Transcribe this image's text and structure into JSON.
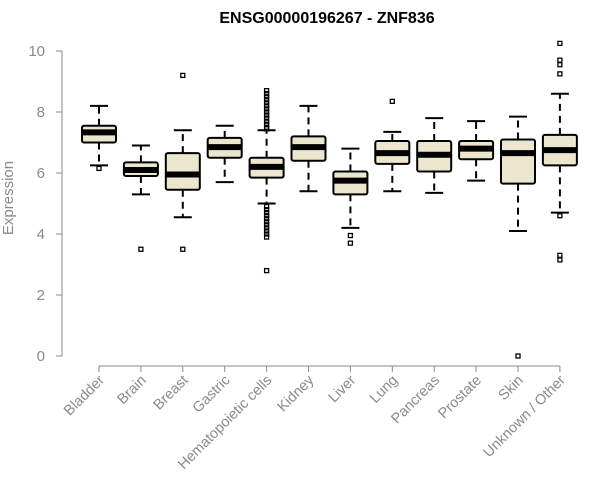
{
  "chart_data": {
    "type": "boxplot",
    "title": "ENSG00000196267 - ZNF836",
    "xlabel": "",
    "ylabel": "Expression",
    "ylim": [
      0,
      10
    ],
    "yticks": [
      0,
      2,
      4,
      6,
      8,
      10
    ],
    "colors": {
      "box_fill": "#ede6cf",
      "stroke": "#000000",
      "axis": "#8a8a8a"
    },
    "categories": [
      "Bladder",
      "Brain",
      "Breast",
      "Gastric",
      "Hematopoietic cells",
      "Kidney",
      "Liver",
      "Lung",
      "Pancreas",
      "Prostate",
      "Skin",
      "Unknown / Other"
    ],
    "boxes": [
      {
        "name": "Bladder",
        "whisker_low": 6.25,
        "q1": 7.0,
        "median": 7.33,
        "q3": 7.55,
        "whisker_high": 8.2,
        "outliers": [
          6.15
        ]
      },
      {
        "name": "Brain",
        "whisker_low": 5.3,
        "q1": 5.9,
        "median": 6.1,
        "q3": 6.35,
        "whisker_high": 6.9,
        "outliers": [
          3.5
        ]
      },
      {
        "name": "Breast",
        "whisker_low": 4.55,
        "q1": 5.45,
        "median": 5.95,
        "q3": 6.65,
        "whisker_high": 7.4,
        "outliers": [
          9.2,
          3.5
        ]
      },
      {
        "name": "Gastric",
        "whisker_low": 5.7,
        "q1": 6.5,
        "median": 6.85,
        "q3": 7.15,
        "whisker_high": 7.55,
        "outliers": []
      },
      {
        "name": "Hematopoietic cells",
        "whisker_low": 5.0,
        "q1": 5.85,
        "median": 6.2,
        "q3": 6.5,
        "whisker_high": 7.4,
        "outliers": [
          8.7,
          8.6,
          8.5,
          8.4,
          8.3,
          8.2,
          8.1,
          8.0,
          7.9,
          7.8,
          7.7,
          7.6,
          7.5,
          7.45,
          4.9,
          4.8,
          4.7,
          4.6,
          4.5,
          4.4,
          4.3,
          4.2,
          4.1,
          4.0,
          3.9,
          2.8
        ]
      },
      {
        "name": "Kidney",
        "whisker_low": 5.4,
        "q1": 6.4,
        "median": 6.85,
        "q3": 7.2,
        "whisker_high": 8.2,
        "outliers": []
      },
      {
        "name": "Liver",
        "whisker_low": 4.2,
        "q1": 5.3,
        "median": 5.75,
        "q3": 6.05,
        "whisker_high": 6.8,
        "outliers": [
          3.95,
          3.7
        ]
      },
      {
        "name": "Lung",
        "whisker_low": 5.4,
        "q1": 6.3,
        "median": 6.65,
        "q3": 7.05,
        "whisker_high": 7.35,
        "outliers": [
          8.35
        ]
      },
      {
        "name": "Pancreas",
        "whisker_low": 5.35,
        "q1": 6.05,
        "median": 6.6,
        "q3": 7.05,
        "whisker_high": 7.8,
        "outliers": []
      },
      {
        "name": "Prostate",
        "whisker_low": 5.75,
        "q1": 6.45,
        "median": 6.8,
        "q3": 7.05,
        "whisker_high": 7.7,
        "outliers": []
      },
      {
        "name": "Skin",
        "whisker_low": 4.1,
        "q1": 5.65,
        "median": 6.65,
        "q3": 7.1,
        "whisker_high": 7.85,
        "outliers": [
          0.0
        ]
      },
      {
        "name": "Unknown / Other",
        "whisker_low": 4.7,
        "q1": 6.25,
        "median": 6.75,
        "q3": 7.25,
        "whisker_high": 8.6,
        "outliers": [
          10.25,
          9.7,
          9.55,
          9.25,
          4.6,
          3.3,
          3.15
        ]
      }
    ]
  }
}
